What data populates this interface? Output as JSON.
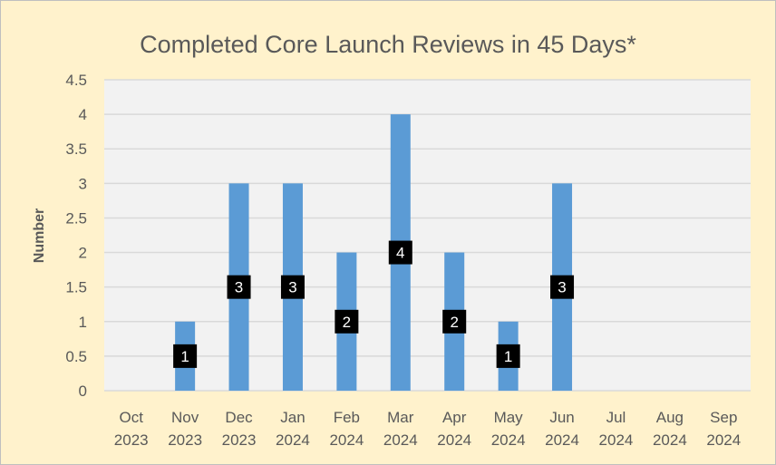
{
  "chart_data": {
    "type": "bar",
    "title": "Completed Core Launch Reviews in 45 Days*",
    "xlabel": "",
    "ylabel": "Number",
    "ylim": [
      0,
      4.5
    ],
    "yticks": [
      "0",
      "0.5",
      "1",
      "1.5",
      "2",
      "2.5",
      "3",
      "3.5",
      "4",
      "4.5"
    ],
    "categories": [
      [
        "Oct",
        "2023"
      ],
      [
        "Nov",
        "2023"
      ],
      [
        "Dec",
        "2023"
      ],
      [
        "Jan",
        "2024"
      ],
      [
        "Feb",
        "2024"
      ],
      [
        "Mar",
        "2024"
      ],
      [
        "Apr",
        "2024"
      ],
      [
        "May",
        "2024"
      ],
      [
        "Jun",
        "2024"
      ],
      [
        "Jul",
        "2024"
      ],
      [
        "Aug",
        "2024"
      ],
      [
        "Sep",
        "2024"
      ]
    ],
    "values": [
      0,
      1,
      3,
      3,
      2,
      4,
      2,
      1,
      3,
      0,
      0,
      0
    ],
    "data_labels": [
      "",
      "1",
      "3",
      "3",
      "2",
      "4",
      "2",
      "1",
      "3",
      "",
      "",
      ""
    ],
    "grid": true,
    "colors": {
      "bar": "#5b9bd5",
      "plot_bg": "#f2f2f2",
      "grid": "#d9d9d9",
      "label_bg": "#000000"
    }
  }
}
